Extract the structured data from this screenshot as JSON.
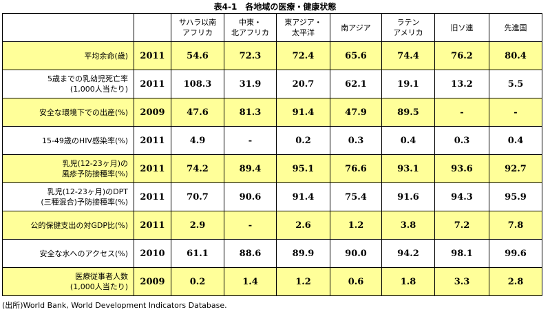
{
  "title": "表4-1　各地域の医療・健康状態",
  "columns": [
    {
      "lines": [
        "サハラ以南",
        "アフリカ"
      ]
    },
    {
      "lines": [
        "中東・",
        "北アフリカ"
      ]
    },
    {
      "lines": [
        "東アジア・",
        "太平洋"
      ]
    },
    {
      "lines": [
        "南アジア"
      ]
    },
    {
      "lines": [
        "ラテン",
        "アメリカ"
      ]
    },
    {
      "lines": [
        "旧ソ連"
      ]
    },
    {
      "lines": [
        "先進国"
      ]
    }
  ],
  "rows": [
    {
      "lines": [
        "平均余命(歳)"
      ],
      "year": "2011",
      "values": [
        "54.6",
        "72.3",
        "72.4",
        "65.6",
        "74.4",
        "76.2",
        "80.4"
      ]
    },
    {
      "lines": [
        "5歳までの乳幼児死亡率",
        "(1,000人当たり)"
      ],
      "year": "2011",
      "values": [
        "108.3",
        "31.9",
        "20.7",
        "62.1",
        "19.1",
        "13.2",
        "5.5"
      ]
    },
    {
      "lines": [
        "安全な環境下での出産(%)"
      ],
      "year": "2009",
      "values": [
        "47.6",
        "81.3",
        "91.4",
        "47.9",
        "89.5",
        "-",
        "-"
      ]
    },
    {
      "lines": [
        "15-49歳のHIV感染率(%)"
      ],
      "year": "2011",
      "values": [
        "4.9",
        "-",
        "0.2",
        "0.3",
        "0.4",
        "0.3",
        "0.4"
      ]
    },
    {
      "lines": [
        "乳児(12-23ヶ月)の",
        "風疹予防接種率(%)"
      ],
      "year": "2011",
      "values": [
        "74.2",
        "89.4",
        "95.1",
        "76.6",
        "93.1",
        "93.6",
        "92.7"
      ]
    },
    {
      "lines": [
        "乳児(12-23ヶ月)のDPT",
        "(三種混合)予防接種率(%)"
      ],
      "year": "2011",
      "values": [
        "70.7",
        "90.6",
        "91.4",
        "75.4",
        "91.6",
        "94.3",
        "95.9"
      ]
    },
    {
      "lines": [
        "公的保健支出の対GDP比(%)"
      ],
      "year": "2011",
      "values": [
        "2.9",
        "-",
        "2.6",
        "1.2",
        "3.8",
        "7.2",
        "7.8"
      ]
    },
    {
      "lines": [
        "安全な水へのアクセス(%)"
      ],
      "year": "2010",
      "values": [
        "61.1",
        "88.6",
        "89.9",
        "90.0",
        "94.2",
        "98.1",
        "99.6"
      ]
    },
    {
      "lines": [
        "医療従事者人数",
        "(1,000人当たり)"
      ],
      "year": "2009",
      "values": [
        "0.2",
        "1.4",
        "1.2",
        "0.6",
        "1.8",
        "3.3",
        "2.8"
      ]
    }
  ],
  "source": "(出所)World Bank, World Development Indicators Database.",
  "colors": {
    "highlight_row": "#ffff99",
    "plain_row": "#ffffff",
    "border": "#000000"
  }
}
